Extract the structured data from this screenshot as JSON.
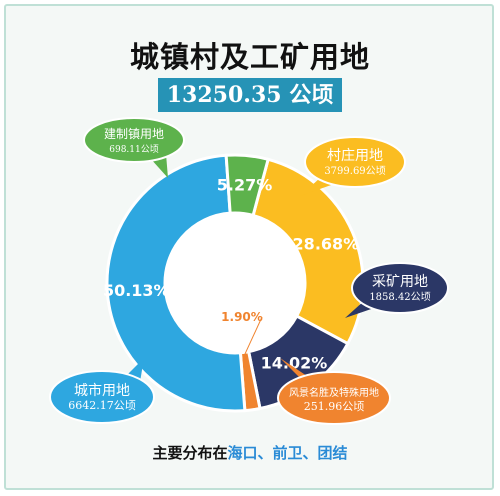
{
  "title": "城镇村及工矿用地",
  "total": "13250.35 公顷",
  "footer": {
    "prefix": "主要分布在",
    "places": "海口、前卫、团结"
  },
  "chart_data": {
    "type": "pie",
    "title": "城镇村及工矿用地",
    "total_label": "13250.35 公顷",
    "series": [
      {
        "name": "村庄用地",
        "value": 3799.69,
        "unit": "公顷",
        "value_label": "3799.69公顷",
        "percent": 28.68,
        "percent_label": "28.68%",
        "color": "#fbbd21",
        "label_color": "#fbbd21",
        "text_color": "#ffffff"
      },
      {
        "name": "采矿用地",
        "value": 1858.42,
        "unit": "公顷",
        "value_label": "1858.42公顷",
        "percent": 14.02,
        "percent_label": "14.02%",
        "color": "#2b3766",
        "label_color": "#2b3766",
        "text_color": "#ffffff"
      },
      {
        "name": "风景名胜及特殊用地",
        "value": 251.96,
        "unit": "公顷",
        "value_label": "251.96公顷",
        "percent": 1.9,
        "percent_label": "1.90%",
        "color": "#f0842f",
        "label_color": "#f0842f",
        "text_color": "#ffffff"
      },
      {
        "name": "城市用地",
        "value": 6642.17,
        "unit": "公顷",
        "value_label": "6642.17公顷",
        "percent": 50.13,
        "percent_label": "50.13%",
        "color": "#2ea7e0",
        "label_color": "#2ea7e0",
        "text_color": "#ffffff"
      },
      {
        "name": "建制镇用地",
        "value": 698.11,
        "unit": "公顷",
        "value_label": "698.11公顷",
        "percent": 5.27,
        "percent_label": "5.27%",
        "color": "#5db24c",
        "label_color": "#5db24c",
        "text_color": "#ffffff"
      }
    ]
  }
}
